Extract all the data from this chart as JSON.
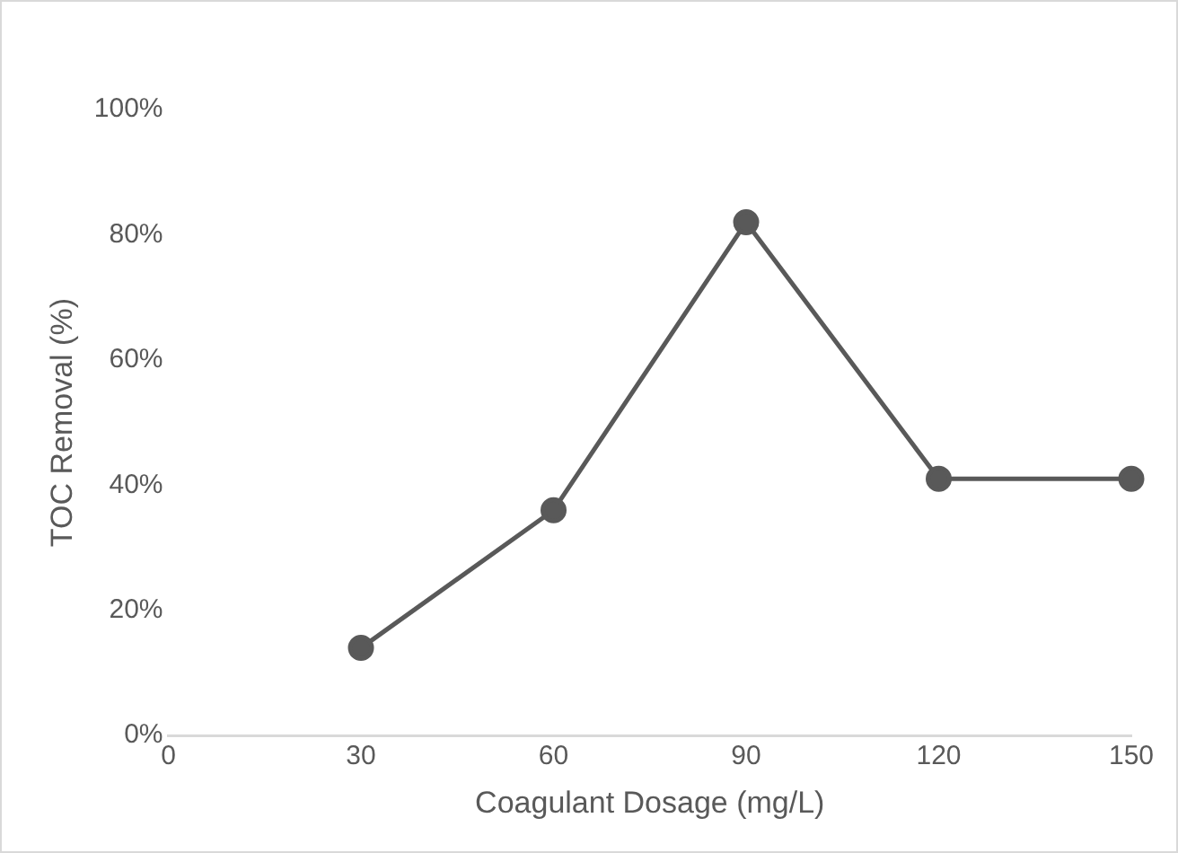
{
  "chart_data": {
    "type": "line",
    "xlabel": "Coagulant Dosage (mg/L)",
    "ylabel": "TOC Removal (%)",
    "x": [
      30,
      60,
      90,
      120,
      150
    ],
    "series": [
      {
        "color": "#595959",
        "values": [
          14,
          36,
          82,
          41,
          41
        ]
      }
    ],
    "xlim": [
      0,
      150
    ],
    "xticks": [
      0,
      30,
      60,
      90,
      120,
      150
    ],
    "ylim": [
      0,
      100
    ],
    "yticks": [
      {
        "value": 0,
        "label": "0%"
      },
      {
        "value": 20,
        "label": "20%"
      },
      {
        "value": 40,
        "label": "40%"
      },
      {
        "value": 60,
        "label": "60%"
      },
      {
        "value": 80,
        "label": "80%"
      },
      {
        "value": 100,
        "label": "100%"
      }
    ],
    "grid": false,
    "legend": false,
    "marker": "circle",
    "line_style": "solid"
  }
}
